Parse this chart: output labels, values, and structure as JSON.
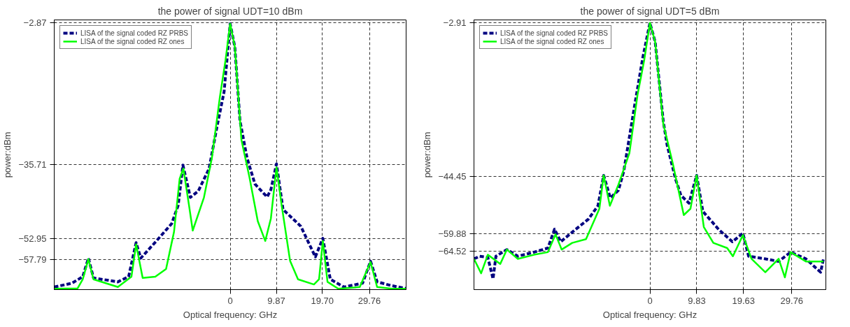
{
  "chart_data": [
    {
      "type": "line",
      "title": "the power of signal UDT=10 dBm",
      "xlabel": "Optical frequency: GHz",
      "ylabel": "power:dBm",
      "xlim": [
        -37.6,
        37.6
      ],
      "ylim": [
        -64.8,
        -2.2
      ],
      "xticks": [
        0,
        9.87,
        {
          "value": 19.7,
          "label": "19.70"
        },
        29.76
      ],
      "yticks": [
        -2.87,
        -35.71,
        -52.95,
        -57.79
      ],
      "grid": true,
      "legend": "top left",
      "series": [
        {
          "name": "LISA of the signal coded RZ PRBS",
          "color": "#000080",
          "line_style": "dashed",
          "x": [
            -37.6,
            -33.8,
            -31.5,
            -30.3,
            -29.2,
            -24.0,
            -21.7,
            -20.1,
            -19.1,
            -16.0,
            -12.5,
            -11.1,
            -10.1,
            -8.5,
            -6.8,
            -4.5,
            -2.8,
            -1.3,
            0,
            1.0,
            2.1,
            3.6,
            5.3,
            7.9,
            8.7,
            9.9,
            11.3,
            15.1,
            18.2,
            19.8,
            21.4,
            24.3,
            28.3,
            30.0,
            31.4,
            34.6,
            37.5
          ],
          "values": [
            -64.2,
            -63.3,
            -61.8,
            -57.5,
            -62.1,
            -63.0,
            -61.8,
            -53.9,
            -57.5,
            -53.8,
            -49.5,
            -45.2,
            -35.9,
            -43.4,
            -41.9,
            -36.7,
            -26.9,
            -18.9,
            -3.1,
            -8.5,
            -25.6,
            -34.2,
            -40.3,
            -43.3,
            -41.6,
            -35.6,
            -46.2,
            -50.1,
            -57.2,
            -52.9,
            -62.4,
            -64.2,
            -63.3,
            -58.2,
            -63.0,
            -63.9,
            -64.5
          ]
        },
        {
          "name": "LISA of the signal coded RZ ones",
          "color": "#00ff00",
          "line_style": "solid",
          "x": [
            -37.6,
            -32.6,
            -31.5,
            -30.3,
            -29.2,
            -24.0,
            -21.1,
            -20.1,
            -18.7,
            -16.0,
            -13.7,
            -12.0,
            -10.8,
            -10.0,
            -8.8,
            -8.0,
            -5.6,
            -3.9,
            -2.2,
            -1.0,
            0,
            1.0,
            2.4,
            4.1,
            5.9,
            7.5,
            8.7,
            9.9,
            11.0,
            12.8,
            14.5,
            17.9,
            19.0,
            19.8,
            20.8,
            23.1,
            27.7,
            30.0,
            31.4,
            34.6,
            37.5
          ],
          "values": [
            -64.6,
            -64.5,
            -62.4,
            -57.7,
            -62.4,
            -64.2,
            -61.8,
            -54.3,
            -62.1,
            -61.8,
            -60.0,
            -51.4,
            -39.1,
            -36.7,
            -45.2,
            -51.1,
            -43.4,
            -34.2,
            -20.1,
            -11.6,
            -3.1,
            -8.5,
            -30.0,
            -38.6,
            -48.9,
            -53.5,
            -48.3,
            -36.4,
            -45.2,
            -58.1,
            -62.4,
            -63.6,
            -62.4,
            -53.5,
            -63.0,
            -64.6,
            -64.2,
            -58.4,
            -64.2,
            -64.6,
            -64.6
          ]
        }
      ]
    },
    {
      "type": "line",
      "title": "the power of signal UDT=5 dBm",
      "xlabel": "Optical frequency: GHz",
      "ylabel": "power:dBm",
      "xlim": [
        -36.9,
        36.9
      ],
      "ylim": [
        -74.9,
        -2.2
      ],
      "xticks": [
        0,
        9.83,
        19.63,
        29.76
      ],
      "yticks": [
        -2.91,
        -44.45,
        -59.88,
        -64.52
      ],
      "grid": true,
      "legend": "top left",
      "series": [
        {
          "name": "LISA of the signal coded RZ PRBS",
          "color": "#000080",
          "line_style": "dashed",
          "x": [
            -36.9,
            -35.7,
            -34.0,
            -32.9,
            -32.3,
            -30.0,
            -27.7,
            -24.3,
            -21.4,
            -20.0,
            -18.7,
            -15.7,
            -12.9,
            -10.9,
            -9.7,
            -8.3,
            -6.6,
            -5.5,
            -3.2,
            -1.5,
            0,
            1.1,
            2.8,
            3.6,
            5.4,
            6.5,
            8.2,
            9.8,
            11.1,
            14.5,
            17.3,
            19.5,
            20.7,
            24.2,
            27.0,
            29.5,
            32.7,
            35.8,
            36.4
          ],
          "values": [
            -66.6,
            -65.9,
            -66.2,
            -72.0,
            -65.9,
            -64.1,
            -65.9,
            -64.8,
            -63.7,
            -58.6,
            -62.0,
            -58.8,
            -55.9,
            -52.3,
            -44.1,
            -50.2,
            -48.1,
            -43.1,
            -25.2,
            -12.4,
            -3.0,
            -8.1,
            -29.5,
            -35.9,
            -45.2,
            -49.5,
            -51.6,
            -44.1,
            -53.8,
            -58.8,
            -62.0,
            -59.7,
            -65.9,
            -66.6,
            -67.3,
            -64.8,
            -66.6,
            -70.2,
            -66.6
          ]
        },
        {
          "name": "LISA of the signal coded RZ ones",
          "color": "#00ff00",
          "line_style": "solid",
          "x": [
            -36.9,
            -35.4,
            -34.0,
            -31.4,
            -30.0,
            -27.7,
            -24.3,
            -21.4,
            -19.8,
            -18.5,
            -16.3,
            -13.4,
            -10.6,
            -9.7,
            -8.4,
            -6.6,
            -4.3,
            -2.6,
            -1.2,
            0,
            1.1,
            2.8,
            4.8,
            7.1,
            8.5,
            9.8,
            11.3,
            13.3,
            16.2,
            17.4,
            19.5,
            21.3,
            24.2,
            27.0,
            28.3,
            29.5,
            32.7,
            36.4
          ],
          "values": [
            -66.6,
            -70.5,
            -65.5,
            -68.0,
            -64.1,
            -66.6,
            -65.5,
            -64.8,
            -60.0,
            -64.1,
            -62.3,
            -61.3,
            -53.1,
            -44.1,
            -52.3,
            -46.6,
            -38.1,
            -22.4,
            -13.1,
            -3.0,
            -8.1,
            -30.2,
            -40.9,
            -54.8,
            -53.1,
            -44.1,
            -58.0,
            -62.3,
            -63.7,
            -65.9,
            -60.2,
            -66.6,
            -70.2,
            -66.6,
            -71.6,
            -64.8,
            -67.3,
            -67.3
          ]
        }
      ]
    }
  ]
}
